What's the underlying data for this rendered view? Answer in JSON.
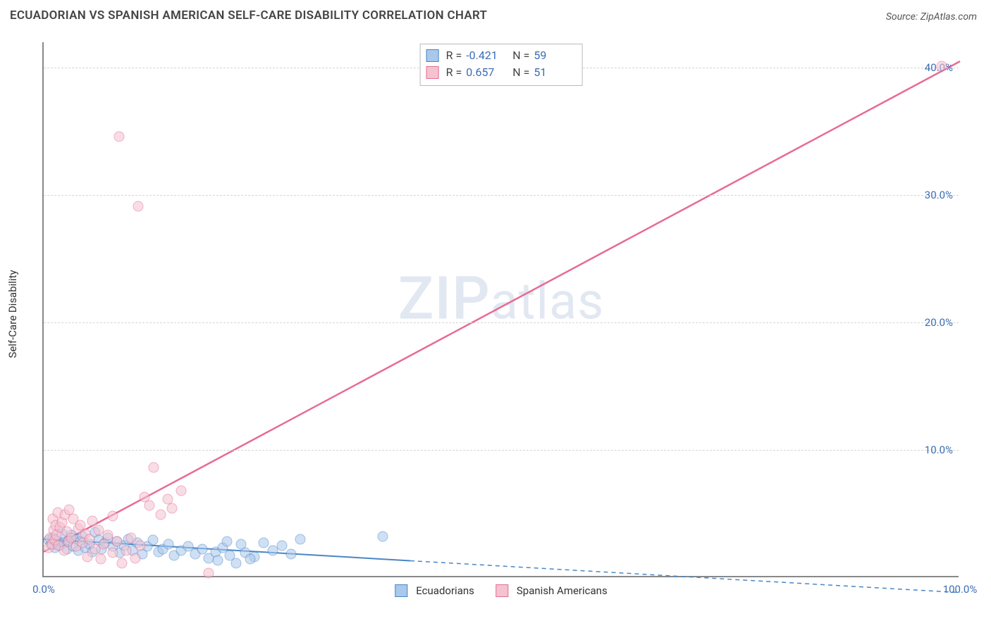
{
  "title": "ECUADORIAN VS SPANISH AMERICAN SELF-CARE DISABILITY CORRELATION CHART",
  "source": "Source: ZipAtlas.com",
  "watermark": "ZIPatlas",
  "y_axis_label": "Self-Care Disability",
  "chart": {
    "type": "scatter",
    "x_range": [
      0,
      100
    ],
    "y_range": [
      0,
      42
    ],
    "y_ticks": [
      10,
      20,
      30,
      40
    ],
    "y_tick_labels": [
      "10.0%",
      "20.0%",
      "30.0%",
      "40.0%"
    ],
    "x_ticks": [
      0,
      100
    ],
    "x_tick_labels": [
      "0.0%",
      "100.0%"
    ],
    "grid_color": "#d6d6d6",
    "axis_color": "#888888",
    "background_color": "#ffffff",
    "tick_font_color": "#3b6db5",
    "tick_font_size": 15,
    "marker_radius": 7.5,
    "marker_opacity": 0.55
  },
  "series": [
    {
      "name": "Ecuadorians",
      "color_fill": "#a9c8ec",
      "color_stroke": "#4a86c5",
      "r_value": "-0.421",
      "n_value": "59",
      "regression": {
        "x1": 0,
        "y1": 3.0,
        "x2": 40,
        "y2": 1.3,
        "extend_to_x": 100,
        "extend_y": -1.2,
        "dash_extension": true,
        "width": 2
      },
      "points": [
        [
          0.5,
          2.8
        ],
        [
          0.8,
          2.5
        ],
        [
          1.0,
          3.0
        ],
        [
          1.2,
          2.2
        ],
        [
          1.5,
          2.7
        ],
        [
          1.8,
          2.4
        ],
        [
          2.0,
          3.3
        ],
        [
          2.2,
          2.6
        ],
        [
          2.5,
          2.1
        ],
        [
          2.8,
          2.8
        ],
        [
          3.0,
          3.2
        ],
        [
          3.2,
          2.3
        ],
        [
          3.5,
          2.9
        ],
        [
          3.8,
          2.0
        ],
        [
          4.0,
          2.7
        ],
        [
          4.2,
          3.1
        ],
        [
          4.5,
          2.2
        ],
        [
          5.0,
          2.5
        ],
        [
          5.3,
          1.9
        ],
        [
          5.6,
          3.4
        ],
        [
          6.0,
          2.8
        ],
        [
          6.3,
          2.1
        ],
        [
          6.7,
          2.6
        ],
        [
          7.0,
          3.0
        ],
        [
          7.5,
          2.3
        ],
        [
          8.0,
          2.7
        ],
        [
          8.3,
          1.8
        ],
        [
          8.8,
          2.4
        ],
        [
          9.2,
          2.9
        ],
        [
          9.7,
          2.0
        ],
        [
          10.2,
          2.6
        ],
        [
          10.8,
          1.7
        ],
        [
          11.3,
          2.3
        ],
        [
          11.9,
          2.8
        ],
        [
          12.5,
          1.9
        ],
        [
          13.0,
          2.1
        ],
        [
          13.6,
          2.5
        ],
        [
          14.2,
          1.6
        ],
        [
          15.0,
          2.0
        ],
        [
          15.8,
          2.3
        ],
        [
          16.5,
          1.7
        ],
        [
          17.3,
          2.1
        ],
        [
          18.0,
          1.4
        ],
        [
          18.8,
          1.9
        ],
        [
          19.5,
          2.2
        ],
        [
          20.3,
          1.6
        ],
        [
          21.0,
          1.0
        ],
        [
          22.0,
          1.8
        ],
        [
          23.0,
          1.5
        ],
        [
          24.0,
          2.6
        ],
        [
          25.0,
          2.0
        ],
        [
          26.0,
          2.4
        ],
        [
          27.0,
          1.7
        ],
        [
          28.0,
          2.9
        ],
        [
          21.5,
          2.5
        ],
        [
          22.5,
          1.3
        ],
        [
          19.0,
          1.2
        ],
        [
          20.0,
          2.7
        ],
        [
          37.0,
          3.1
        ]
      ]
    },
    {
      "name": "Spanish Americans",
      "color_fill": "#f4c3d0",
      "color_stroke": "#e76b94",
      "r_value": "0.657",
      "n_value": "51",
      "regression": {
        "x1": 0,
        "y1": 2.0,
        "x2": 100,
        "y2": 40.5,
        "dash_extension": false,
        "width": 2.5
      },
      "points": [
        [
          0.5,
          2.2
        ],
        [
          0.7,
          3.0
        ],
        [
          0.9,
          2.5
        ],
        [
          1.0,
          4.5
        ],
        [
          1.1,
          3.6
        ],
        [
          1.2,
          2.8
        ],
        [
          1.3,
          4.0
        ],
        [
          1.4,
          3.2
        ],
        [
          1.5,
          5.0
        ],
        [
          1.6,
          2.4
        ],
        [
          1.8,
          3.8
        ],
        [
          2.0,
          4.2
        ],
        [
          2.2,
          2.0
        ],
        [
          2.3,
          4.8
        ],
        [
          2.5,
          3.5
        ],
        [
          2.7,
          2.7
        ],
        [
          2.8,
          5.2
        ],
        [
          3.0,
          3.0
        ],
        [
          3.2,
          4.5
        ],
        [
          3.5,
          2.3
        ],
        [
          3.8,
          3.7
        ],
        [
          4.0,
          4.0
        ],
        [
          4.2,
          2.6
        ],
        [
          4.5,
          3.3
        ],
        [
          4.8,
          1.5
        ],
        [
          5.0,
          2.9
        ],
        [
          5.3,
          4.3
        ],
        [
          5.6,
          2.1
        ],
        [
          6.0,
          3.6
        ],
        [
          6.5,
          2.5
        ],
        [
          7.0,
          3.2
        ],
        [
          7.5,
          1.8
        ],
        [
          8.0,
          2.7
        ],
        [
          8.5,
          1.0
        ],
        [
          9.0,
          2.0
        ],
        [
          9.5,
          3.0
        ],
        [
          10.0,
          1.4
        ],
        [
          10.5,
          2.4
        ],
        [
          11.0,
          6.2
        ],
        [
          11.5,
          5.5
        ],
        [
          12.0,
          8.5
        ],
        [
          12.8,
          4.8
        ],
        [
          13.5,
          6.0
        ],
        [
          14.0,
          5.3
        ],
        [
          15.0,
          6.7
        ],
        [
          18.0,
          0.2
        ],
        [
          8.2,
          34.5
        ],
        [
          10.3,
          29.0
        ],
        [
          7.5,
          4.7
        ],
        [
          6.2,
          1.3
        ],
        [
          98.0,
          40.0
        ]
      ]
    }
  ],
  "legend": {
    "items": [
      {
        "label": "Ecuadorians",
        "fill": "#a9c8ec",
        "stroke": "#4a86c5"
      },
      {
        "label": "Spanish Americans",
        "fill": "#f4c3d0",
        "stroke": "#e76b94"
      }
    ]
  }
}
